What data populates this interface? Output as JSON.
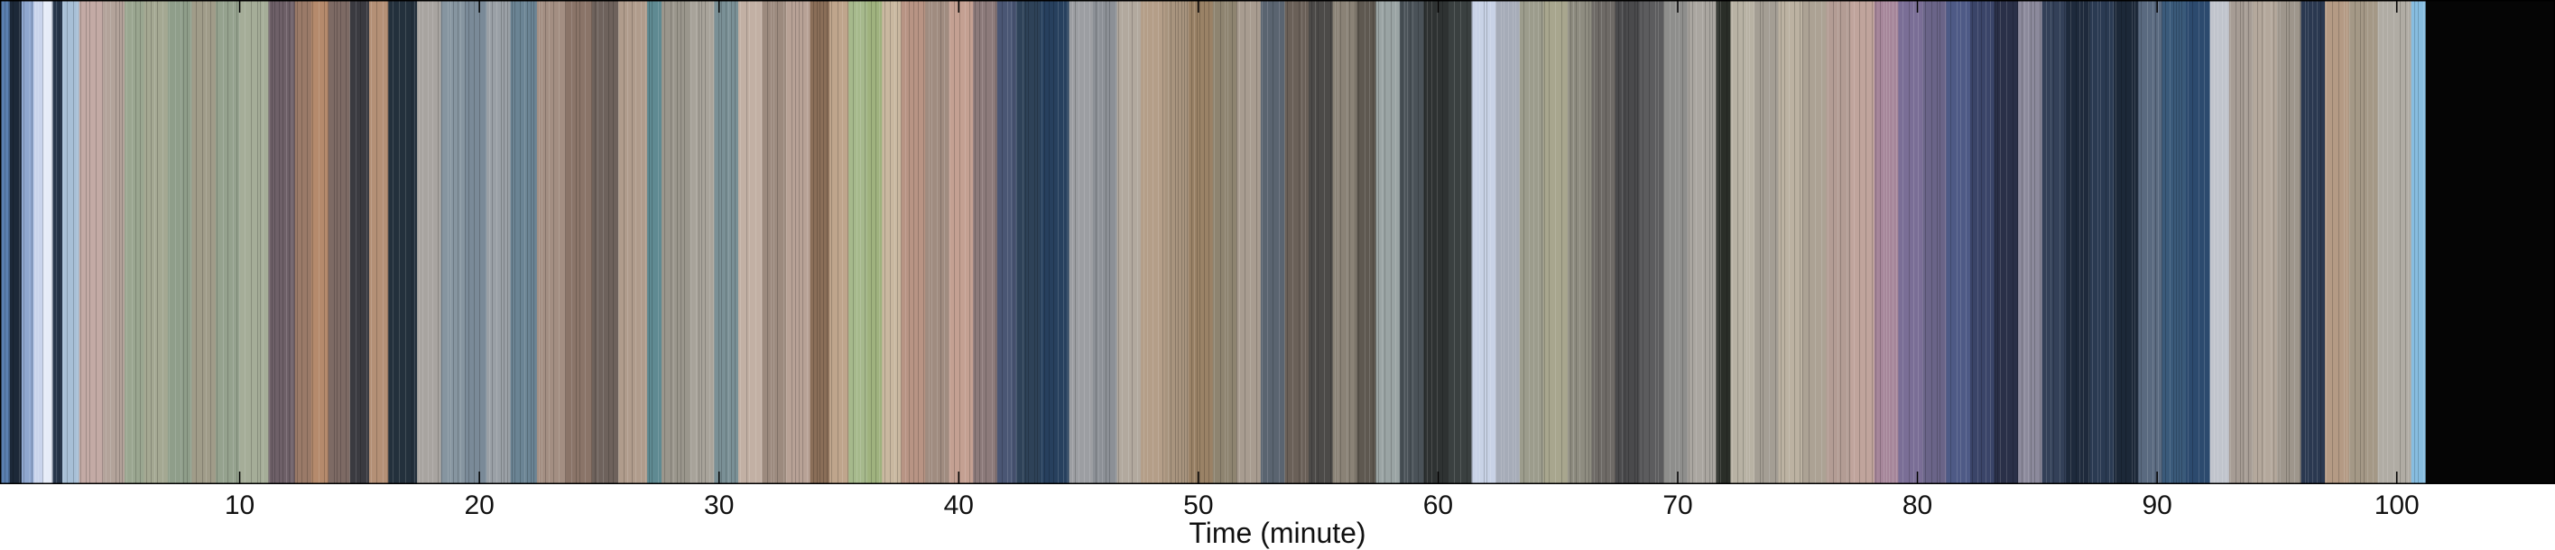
{
  "chart_data": {
    "type": "heatmap",
    "xlabel": "Time (minute)",
    "xlim": [
      0,
      106.6
    ],
    "xticks": [
      10,
      20,
      30,
      40,
      50,
      60,
      70,
      80,
      90,
      100
    ],
    "grid": false,
    "end_of_film_minute": 101.2,
    "segments": [
      {
        "start": 0.0,
        "end": 0.4,
        "color": "#5a7fb0"
      },
      {
        "start": 0.4,
        "end": 0.9,
        "color": "#1c2838"
      },
      {
        "start": 0.9,
        "end": 1.4,
        "color": "#8fa7cf"
      },
      {
        "start": 1.4,
        "end": 1.8,
        "color": "#c9d4ec"
      },
      {
        "start": 1.8,
        "end": 2.2,
        "color": "#e6ecf8"
      },
      {
        "start": 2.2,
        "end": 2.6,
        "color": "#27364a"
      },
      {
        "start": 2.6,
        "end": 3.3,
        "color": "#a7bfd6"
      },
      {
        "start": 3.3,
        "end": 4.3,
        "color": "#c3aaa5"
      },
      {
        "start": 4.3,
        "end": 5.2,
        "color": "#b3a39a"
      },
      {
        "start": 5.2,
        "end": 6.0,
        "color": "#9aa690"
      },
      {
        "start": 6.0,
        "end": 7.0,
        "color": "#a4a892"
      },
      {
        "start": 7.0,
        "end": 8.0,
        "color": "#8f9e8a"
      },
      {
        "start": 8.0,
        "end": 9.0,
        "color": "#a09c89"
      },
      {
        "start": 9.0,
        "end": 10.0,
        "color": "#95a28e"
      },
      {
        "start": 10.0,
        "end": 11.2,
        "color": "#a5ad98"
      },
      {
        "start": 11.2,
        "end": 12.3,
        "color": "#6e6068"
      },
      {
        "start": 12.3,
        "end": 13.0,
        "color": "#9a7a68"
      },
      {
        "start": 13.0,
        "end": 13.7,
        "color": "#b58a6c"
      },
      {
        "start": 13.7,
        "end": 14.6,
        "color": "#7d6a64"
      },
      {
        "start": 14.6,
        "end": 15.4,
        "color": "#3a3a40"
      },
      {
        "start": 15.4,
        "end": 16.2,
        "color": "#b49076"
      },
      {
        "start": 16.2,
        "end": 17.4,
        "color": "#23303c"
      },
      {
        "start": 17.4,
        "end": 18.4,
        "color": "#a8a4a0"
      },
      {
        "start": 18.4,
        "end": 19.4,
        "color": "#8695a0"
      },
      {
        "start": 19.4,
        "end": 20.3,
        "color": "#7a8a98"
      },
      {
        "start": 20.3,
        "end": 21.3,
        "color": "#9aa0a6"
      },
      {
        "start": 21.3,
        "end": 22.4,
        "color": "#6b8494"
      },
      {
        "start": 22.4,
        "end": 23.6,
        "color": "#a38e82"
      },
      {
        "start": 23.6,
        "end": 24.7,
        "color": "#8a7468"
      },
      {
        "start": 24.7,
        "end": 25.8,
        "color": "#6e625c"
      },
      {
        "start": 25.8,
        "end": 27.0,
        "color": "#b09c8c"
      },
      {
        "start": 27.0,
        "end": 27.6,
        "color": "#5f8a92"
      },
      {
        "start": 27.6,
        "end": 28.8,
        "color": "#9a968c"
      },
      {
        "start": 28.8,
        "end": 29.8,
        "color": "#a8a39a"
      },
      {
        "start": 29.8,
        "end": 30.8,
        "color": "#7a9096"
      },
      {
        "start": 30.8,
        "end": 31.8,
        "color": "#c2b0a4"
      },
      {
        "start": 31.8,
        "end": 32.8,
        "color": "#9c8a7e"
      },
      {
        "start": 32.8,
        "end": 33.8,
        "color": "#b8a296"
      },
      {
        "start": 33.8,
        "end": 34.6,
        "color": "#8a6e58"
      },
      {
        "start": 34.6,
        "end": 35.4,
        "color": "#bfa58c"
      },
      {
        "start": 35.4,
        "end": 36.2,
        "color": "#a6b98c"
      },
      {
        "start": 36.2,
        "end": 36.8,
        "color": "#9fb27e"
      },
      {
        "start": 36.8,
        "end": 37.6,
        "color": "#c9b8a0"
      },
      {
        "start": 37.6,
        "end": 38.6,
        "color": "#b89484"
      },
      {
        "start": 38.6,
        "end": 39.6,
        "color": "#a08c80"
      },
      {
        "start": 39.6,
        "end": 40.6,
        "color": "#c4a092"
      },
      {
        "start": 40.6,
        "end": 41.6,
        "color": "#8c7a7a"
      },
      {
        "start": 41.6,
        "end": 42.4,
        "color": "#4a5674"
      },
      {
        "start": 42.4,
        "end": 43.4,
        "color": "#2e4258"
      },
      {
        "start": 43.4,
        "end": 44.6,
        "color": "#27405e"
      },
      {
        "start": 44.6,
        "end": 45.6,
        "color": "#9c9ea2"
      },
      {
        "start": 45.6,
        "end": 46.6,
        "color": "#8c9096"
      },
      {
        "start": 46.6,
        "end": 47.6,
        "color": "#b2a99e"
      },
      {
        "start": 47.6,
        "end": 48.6,
        "color": "#b49e88"
      },
      {
        "start": 48.6,
        "end": 49.6,
        "color": "#a8947e"
      },
      {
        "start": 49.6,
        "end": 50.6,
        "color": "#9a8266"
      },
      {
        "start": 50.6,
        "end": 51.6,
        "color": "#8e8470"
      },
      {
        "start": 51.6,
        "end": 52.6,
        "color": "#a89c90"
      },
      {
        "start": 52.6,
        "end": 53.6,
        "color": "#5a6470"
      },
      {
        "start": 53.6,
        "end": 54.6,
        "color": "#6a6058"
      },
      {
        "start": 54.6,
        "end": 55.6,
        "color": "#4c4a48"
      },
      {
        "start": 55.6,
        "end": 56.6,
        "color": "#8a8276"
      },
      {
        "start": 56.6,
        "end": 57.4,
        "color": "#5e5850"
      },
      {
        "start": 57.4,
        "end": 58.4,
        "color": "#9aa4a4"
      },
      {
        "start": 58.4,
        "end": 59.4,
        "color": "#4a5258"
      },
      {
        "start": 59.4,
        "end": 60.4,
        "color": "#2e3232"
      },
      {
        "start": 60.4,
        "end": 61.4,
        "color": "#3a4040"
      },
      {
        "start": 61.4,
        "end": 62.4,
        "color": "#c8d2e6"
      },
      {
        "start": 62.4,
        "end": 63.4,
        "color": "#a6acb8"
      },
      {
        "start": 63.4,
        "end": 64.4,
        "color": "#9c9c8c"
      },
      {
        "start": 64.4,
        "end": 65.4,
        "color": "#a8a68e"
      },
      {
        "start": 65.4,
        "end": 66.4,
        "color": "#8e8c80"
      },
      {
        "start": 66.4,
        "end": 67.4,
        "color": "#6e6a66"
      },
      {
        "start": 67.4,
        "end": 68.4,
        "color": "#4a4a4c"
      },
      {
        "start": 68.4,
        "end": 69.4,
        "color": "#5c5c5e"
      },
      {
        "start": 69.4,
        "end": 70.4,
        "color": "#8e8e8c"
      },
      {
        "start": 70.4,
        "end": 71.6,
        "color": "#aaa6a0"
      },
      {
        "start": 71.6,
        "end": 72.2,
        "color": "#2a2e28"
      },
      {
        "start": 72.2,
        "end": 73.2,
        "color": "#b8b2a4"
      },
      {
        "start": 73.2,
        "end": 74.2,
        "color": "#a49e94"
      },
      {
        "start": 74.2,
        "end": 75.2,
        "color": "#bcb2a2"
      },
      {
        "start": 75.2,
        "end": 76.2,
        "color": "#aca294"
      },
      {
        "start": 76.2,
        "end": 77.2,
        "color": "#b39c94"
      },
      {
        "start": 77.2,
        "end": 78.2,
        "color": "#c0a49c"
      },
      {
        "start": 78.2,
        "end": 79.2,
        "color": "#a6869a"
      },
      {
        "start": 79.2,
        "end": 80.2,
        "color": "#7a6e96"
      },
      {
        "start": 80.2,
        "end": 81.2,
        "color": "#6a6488"
      },
      {
        "start": 81.2,
        "end": 82.2,
        "color": "#4e5a86"
      },
      {
        "start": 82.2,
        "end": 83.2,
        "color": "#3a4468"
      },
      {
        "start": 83.2,
        "end": 84.2,
        "color": "#2a3048"
      },
      {
        "start": 84.2,
        "end": 85.2,
        "color": "#8c8a9c"
      },
      {
        "start": 85.2,
        "end": 86.2,
        "color": "#334058"
      },
      {
        "start": 86.2,
        "end": 87.2,
        "color": "#1e2a3c"
      },
      {
        "start": 87.2,
        "end": 88.2,
        "color": "#2a3a52"
      },
      {
        "start": 88.2,
        "end": 89.2,
        "color": "#1c2838"
      },
      {
        "start": 89.2,
        "end": 90.2,
        "color": "#5a6a80"
      },
      {
        "start": 90.2,
        "end": 91.2,
        "color": "#3a5a7a"
      },
      {
        "start": 91.2,
        "end": 92.2,
        "color": "#2c4a6e"
      },
      {
        "start": 92.2,
        "end": 93.0,
        "color": "#c0c4cc"
      },
      {
        "start": 93.0,
        "end": 94.0,
        "color": "#a69c94"
      },
      {
        "start": 94.0,
        "end": 95.0,
        "color": "#b4a89c"
      },
      {
        "start": 95.0,
        "end": 96.0,
        "color": "#9e968c"
      },
      {
        "start": 96.0,
        "end": 97.0,
        "color": "#2a3850"
      },
      {
        "start": 97.0,
        "end": 98.0,
        "color": "#b49a84"
      },
      {
        "start": 98.0,
        "end": 99.2,
        "color": "#a49886"
      },
      {
        "start": 99.2,
        "end": 100.6,
        "color": "#b0aca4"
      },
      {
        "start": 100.6,
        "end": 101.2,
        "color": "#87bde0"
      },
      {
        "start": 101.2,
        "end": 106.6,
        "color": "#050505"
      }
    ]
  }
}
